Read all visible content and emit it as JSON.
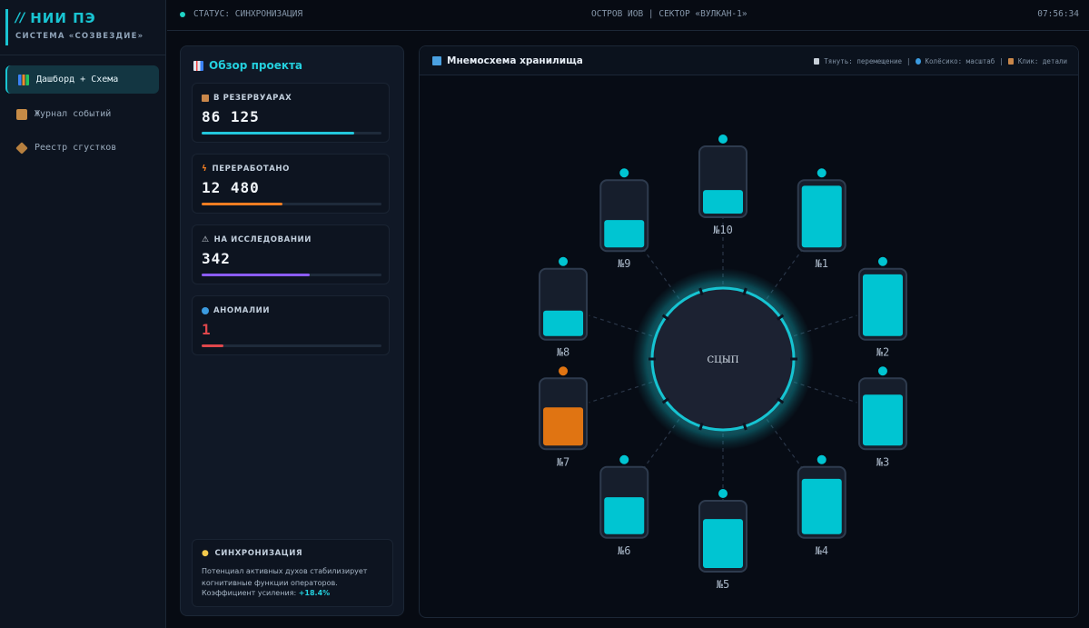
{
  "sidebar": {
    "brand_title": "НИИ ПЭ",
    "brand_subtitle": "СИСТЕМА «СОЗВЕЗДИЕ»",
    "items": [
      {
        "label": "Дашборд + Схема",
        "icon": "chart-icon",
        "active": true
      },
      {
        "label": "Журнал событий",
        "icon": "scroll-icon",
        "active": false
      },
      {
        "label": "Реестр сгустков",
        "icon": "box-icon",
        "active": false
      }
    ]
  },
  "topbar": {
    "status": "СТАТУС: СИНХРОНИЗАЦИЯ",
    "location": "ОСТРОВ ИОВ | СЕКТОР «ВУЛКАН-1»",
    "time": "07:56:34"
  },
  "overview": {
    "title": "Обзор проекта",
    "stats": [
      {
        "label": "В РЕЗЕРВУАРАХ",
        "value": "86 125",
        "progress": 0.85,
        "color": "#22c7dc",
        "icon": "box-icon"
      },
      {
        "label": "ПЕРЕРАБОТАНО",
        "value": "12 480",
        "progress": 0.45,
        "color": "#ef7d22",
        "icon": "lightning-icon"
      },
      {
        "label": "НА ИССЛЕДОВАНИИ",
        "value": "342",
        "progress": 0.6,
        "color": "#8b5cf6",
        "icon": "warning-icon"
      },
      {
        "label": "АНОМАЛИИ",
        "value": "1",
        "progress": 0.12,
        "color": "#e0474c",
        "icon": "search-icon"
      }
    ],
    "sync": {
      "title": "СИНХРОНИЗАЦИЯ",
      "text": "Потенциал активных духов стабилизирует когнитивные функции операторов.",
      "coef_label": "Коэффициент усиления:",
      "coef_value": "+18.4%"
    }
  },
  "scheme": {
    "title": "Мнемосхема хранилища",
    "hints": [
      "Тянуть: перемещение",
      "Колёсико: масштаб",
      "Клик: детали"
    ],
    "core_label": "СЦЫП",
    "colors": {
      "normal": "#00c5d2",
      "anomaly": "#e07412",
      "accent": "#19c4d2"
    },
    "tanks": [
      {
        "label": "№1",
        "level": 0.97,
        "state": "normal"
      },
      {
        "label": "№2",
        "level": 0.97,
        "state": "normal"
      },
      {
        "label": "№3",
        "level": 0.8,
        "state": "normal"
      },
      {
        "label": "№4",
        "level": 0.87,
        "state": "normal"
      },
      {
        "label": "№5",
        "level": 0.77,
        "state": "normal"
      },
      {
        "label": "№6",
        "level": 0.58,
        "state": "normal"
      },
      {
        "label": "№7",
        "level": 0.6,
        "state": "anomaly"
      },
      {
        "label": "№8",
        "level": 0.4,
        "state": "normal"
      },
      {
        "label": "№9",
        "level": 0.43,
        "state": "normal"
      },
      {
        "label": "№10",
        "level": 0.37,
        "state": "normal"
      }
    ]
  }
}
